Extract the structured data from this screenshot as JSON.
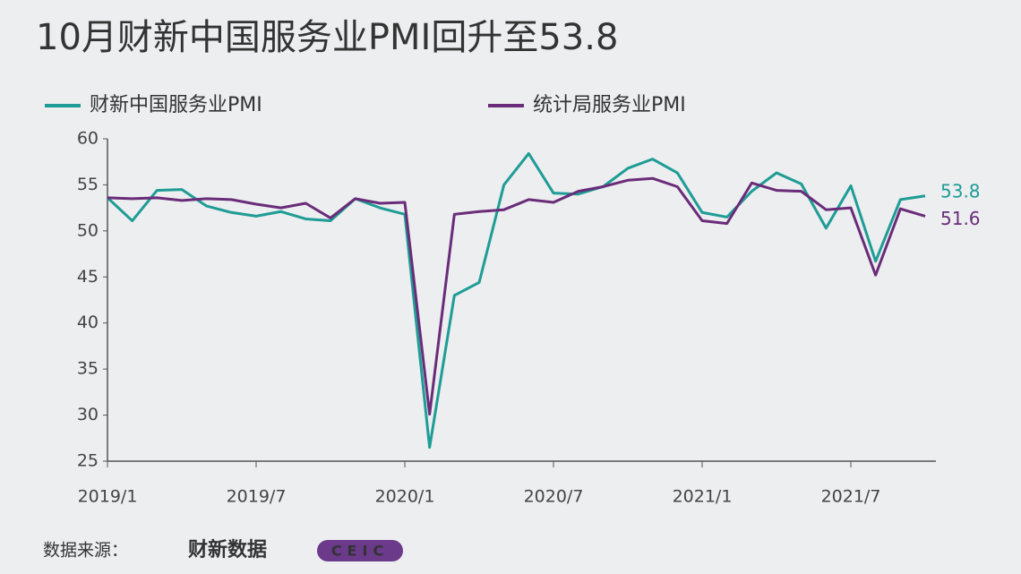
{
  "chart_data": {
    "type": "line",
    "title": "10月财新中国服务业PMI回升至53.8",
    "categories": [
      "2019/1",
      null,
      null,
      null,
      null,
      null,
      "2019/7",
      null,
      null,
      null,
      null,
      null,
      "2020/1",
      null,
      null,
      null,
      null,
      null,
      "2020/7",
      null,
      null,
      null,
      null,
      null,
      "2021/1",
      null,
      null,
      null,
      null,
      null,
      "2021/7",
      null,
      null,
      null
    ],
    "series": [
      {
        "name": "财新中国服务业PMI",
        "color": "#1e9c95",
        "values": [
          53.6,
          51.1,
          54.4,
          54.5,
          52.7,
          52.0,
          51.6,
          52.1,
          51.3,
          51.1,
          53.5,
          52.5,
          51.8,
          26.5,
          43.0,
          44.4,
          55.0,
          58.4,
          54.1,
          54.0,
          54.8,
          56.8,
          57.8,
          56.3,
          52.0,
          51.5,
          54.3,
          56.3,
          55.1,
          50.3,
          54.9,
          46.7,
          53.4,
          53.8
        ]
      },
      {
        "name": "统计局服务业PMI",
        "color": "#6a2c79",
        "values": [
          53.6,
          53.5,
          53.6,
          53.3,
          53.5,
          53.4,
          52.9,
          52.5,
          53.0,
          51.4,
          53.5,
          53.0,
          53.1,
          30.1,
          51.8,
          52.1,
          52.3,
          53.4,
          53.1,
          54.3,
          54.8,
          55.5,
          55.7,
          54.8,
          51.1,
          50.8,
          55.2,
          54.4,
          54.3,
          52.3,
          52.5,
          45.2,
          52.4,
          51.6
        ]
      }
    ],
    "ylim": [
      25,
      60
    ],
    "yticks": [
      25,
      30,
      35,
      40,
      45,
      50,
      55,
      60
    ],
    "grid": false,
    "source_label": "数据来源：",
    "source_brand": "财新数据",
    "source_logo": "CEIC"
  }
}
